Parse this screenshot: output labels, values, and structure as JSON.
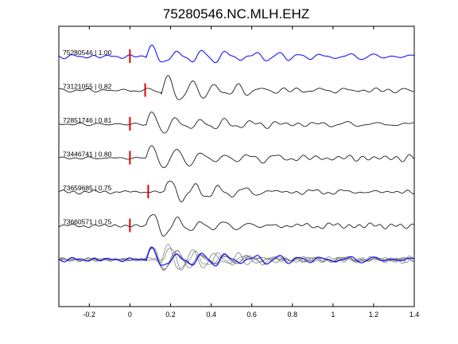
{
  "chart_data": {
    "type": "line",
    "title": "75280546.NC.MLH.EHZ",
    "xlabel": "",
    "ylabel": "",
    "xlim": [
      -0.35,
      1.4
    ],
    "xticks": [
      -0.2,
      0,
      0.2,
      0.4,
      0.6,
      0.8,
      1,
      1.2,
      1.4
    ],
    "xtick_labels": [
      "-0.2",
      "0",
      "0.2",
      "0.4",
      "0.6",
      "0.8",
      "1",
      "1.2",
      "1.4"
    ],
    "grid": false,
    "pick_color": "#e00000",
    "master_color": "#0000ff",
    "trace_color": "#000000",
    "stack_color": "#808080",
    "series": [
      {
        "name": "75280546 | 1.00",
        "event_id": "75280546",
        "correlation": 1.0,
        "pick_time": 0.0,
        "master": true
      },
      {
        "name": "73121055 | 0.82",
        "event_id": "73121055",
        "correlation": 0.82,
        "pick_time": 0.075,
        "master": false
      },
      {
        "name": "72851746 | 0.81",
        "event_id": "72851746",
        "correlation": 0.81,
        "pick_time": 0.0,
        "master": false
      },
      {
        "name": "73446741 | 0.80",
        "event_id": "73446741",
        "correlation": 0.8,
        "pick_time": 0.0,
        "master": false
      },
      {
        "name": "73659685 | 0.75",
        "event_id": "73659685",
        "correlation": 0.75,
        "pick_time": 0.09,
        "master": false
      },
      {
        "name": "73660571 | 0.75",
        "event_id": "73660571",
        "correlation": 0.75,
        "pick_time": 0.0,
        "master": false
      }
    ]
  }
}
